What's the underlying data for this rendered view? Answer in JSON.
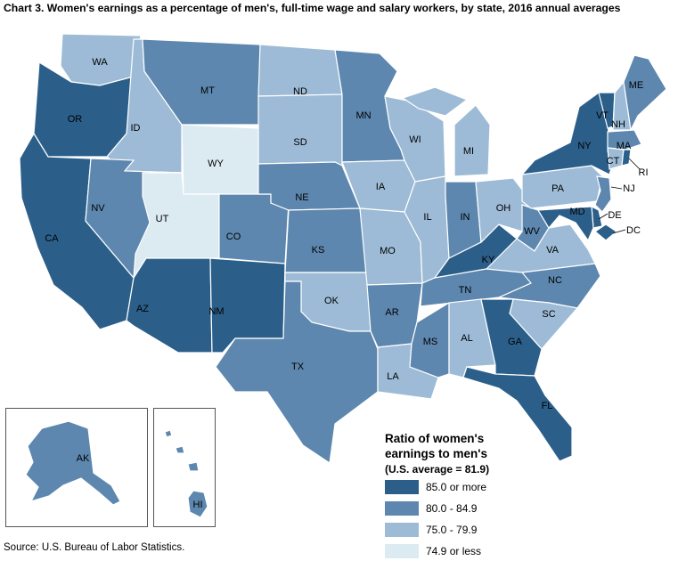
{
  "title": "Chart 3. Women's earnings as a percentage of men's, full-time wage and salary workers, by state, 2016 annual averages",
  "source": "Source: U.S. Bureau of Labor Statistics.",
  "legend": {
    "title_line1": "Ratio of women's",
    "title_line2": "earnings to men's",
    "subtitle": "(U.S. average = 81.9)",
    "items": [
      {
        "label": "85.0 or more",
        "color": "#2b5f8a"
      },
      {
        "label": "80.0 - 84.9",
        "color": "#5d87ae"
      },
      {
        "label": "75.0 - 79.9",
        "color": "#9dbbd6"
      },
      {
        "label": "74.9 or less",
        "color": "#dceaf2"
      }
    ]
  },
  "states": {
    "WA": "75.0 - 79.9",
    "OR": "85.0 or more",
    "CA": "85.0 or more",
    "ID": "75.0 - 79.9",
    "NV": "80.0 - 84.9",
    "UT": "74.9 or less",
    "AZ": "85.0 or more",
    "MT": "80.0 - 84.9",
    "WY": "74.9 or less",
    "CO": "80.0 - 84.9",
    "NM": "85.0 or more",
    "ND": "75.0 - 79.9",
    "SD": "75.0 - 79.9",
    "NE": "80.0 - 84.9",
    "KS": "80.0 - 84.9",
    "OK": "75.0 - 79.9",
    "TX": "80.0 - 84.9",
    "MN": "80.0 - 84.9",
    "IA": "75.0 - 79.9",
    "MO": "75.0 - 79.9",
    "AR": "80.0 - 84.9",
    "LA": "75.0 - 79.9",
    "WI": "75.0 - 79.9",
    "IL": "75.0 - 79.9",
    "MS": "80.0 - 84.9",
    "MI": "75.0 - 79.9",
    "IN": "80.0 - 84.9",
    "KY": "85.0 or more",
    "TN": "80.0 - 84.9",
    "AL": "75.0 - 79.9",
    "OH": "75.0 - 79.9",
    "WV": "80.0 - 84.9",
    "VA": "75.0 - 79.9",
    "NC": "80.0 - 84.9",
    "SC": "75.0 - 79.9",
    "GA": "85.0 or more",
    "FL": "85.0 or more",
    "PA": "75.0 - 79.9",
    "NY": "85.0 or more",
    "VT": "85.0 or more",
    "NH": "75.0 - 79.9",
    "ME": "80.0 - 84.9",
    "MA": "80.0 - 84.9",
    "RI": "85.0 or more",
    "CT": "75.0 - 79.9",
    "NJ": "80.0 - 84.9",
    "DE": "85.0 or more",
    "MD": "85.0 or more",
    "DC": "85.0 or more",
    "AK": "80.0 - 84.9",
    "HI": "80.0 - 84.9"
  },
  "labels": {
    "WA": "WA",
    "OR": "OR",
    "CA": "CA",
    "ID": "ID",
    "NV": "NV",
    "UT": "UT",
    "AZ": "AZ",
    "MT": "MT",
    "WY": "WY",
    "CO": "CO",
    "NM": "NM",
    "ND": "ND",
    "SD": "SD",
    "NE": "NE",
    "KS": "KS",
    "OK": "OK",
    "TX": "TX",
    "MN": "MN",
    "IA": "IA",
    "MO": "MO",
    "AR": "AR",
    "LA": "LA",
    "WI": "WI",
    "IL": "IL",
    "MS": "MS",
    "MI": "MI",
    "IN": "IN",
    "KY": "KY",
    "TN": "TN",
    "AL": "AL",
    "OH": "OH",
    "WV": "WV",
    "VA": "VA",
    "NC": "NC",
    "SC": "SC",
    "GA": "GA",
    "FL": "FL",
    "PA": "PA",
    "NY": "NY",
    "VT": "VT",
    "NH": "NH",
    "ME": "ME",
    "MA": "MA",
    "RI": "RI",
    "CT": "CT",
    "NJ": "NJ",
    "DE": "DE",
    "MD": "MD",
    "DC": "DC",
    "AK": "AK",
    "HI": "HI"
  }
}
